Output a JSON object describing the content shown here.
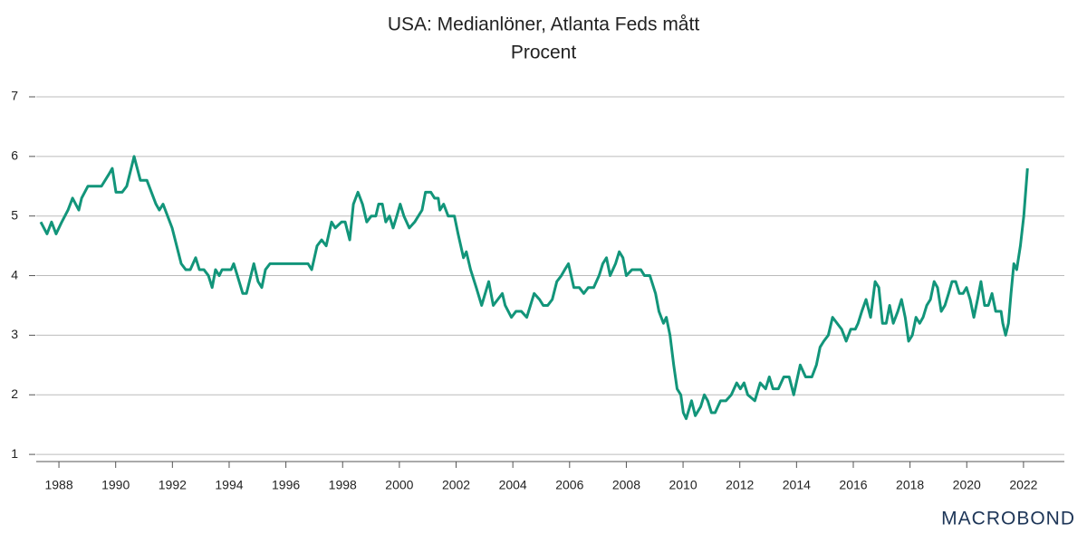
{
  "chart_data": {
    "type": "line",
    "title": "USA: Medianlöner, Atlanta Feds mått",
    "subtitle": "Procent",
    "brand": "MACROBOND",
    "xlim": [
      1987.2,
      2023.44
    ],
    "ylim": [
      0.88,
      7
    ],
    "xticks": [
      1988,
      1990,
      1992,
      1994,
      1996,
      1998,
      2000,
      2002,
      2004,
      2006,
      2008,
      2010,
      2012,
      2014,
      2016,
      2018,
      2020,
      2022
    ],
    "yticks": [
      1,
      2,
      3,
      4,
      5,
      6,
      7
    ],
    "grid": true,
    "series": [
      {
        "color": "#12957a",
        "x": [
          1987.36,
          1987.58,
          1987.74,
          1987.9,
          1988.1,
          1988.32,
          1988.48,
          1988.7,
          1988.8,
          1989.02,
          1989.5,
          1989.76,
          1989.88,
          1990.01,
          1990.23,
          1990.39,
          1990.65,
          1990.87,
          1991.1,
          1991.42,
          1991.54,
          1991.67,
          1991.99,
          1992.15,
          1992.31,
          1992.47,
          1992.63,
          1992.82,
          1992.95,
          1993.11,
          1993.27,
          1993.4,
          1993.52,
          1993.65,
          1993.75,
          1994.07,
          1994.16,
          1994.29,
          1994.48,
          1994.61,
          1994.87,
          1995.02,
          1995.15,
          1995.28,
          1995.44,
          1996.78,
          1996.91,
          1997.1,
          1997.26,
          1997.42,
          1997.61,
          1997.74,
          1997.96,
          1998.09,
          1998.25,
          1998.38,
          1998.54,
          1998.7,
          1998.85,
          1999.01,
          1999.17,
          1999.27,
          1999.4,
          1999.52,
          1999.65,
          1999.78,
          1999.91,
          2000.03,
          2000.16,
          2000.35,
          2000.54,
          2000.67,
          2000.8,
          2000.92,
          2001.11,
          2001.24,
          2001.37,
          2001.43,
          2001.56,
          2001.72,
          2001.94,
          2002.07,
          2002.26,
          2002.36,
          2002.51,
          2002.71,
          2002.9,
          2003.15,
          2003.31,
          2003.47,
          2003.63,
          2003.73,
          2003.95,
          2004.11,
          2004.3,
          2004.49,
          2004.62,
          2004.75,
          2004.94,
          2005.07,
          2005.23,
          2005.39,
          2005.55,
          2005.71,
          2005.83,
          2005.96,
          2006.15,
          2006.34,
          2006.5,
          2006.66,
          2006.85,
          2007.04,
          2007.17,
          2007.3,
          2007.43,
          2007.62,
          2007.75,
          2007.88,
          2008.0,
          2008.2,
          2008.51,
          2008.64,
          2008.83,
          2009.03,
          2009.15,
          2009.31,
          2009.41,
          2009.54,
          2009.67,
          2009.79,
          2009.92,
          2010.01,
          2010.11,
          2010.3,
          2010.43,
          2010.62,
          2010.75,
          2010.87,
          2011.0,
          2011.13,
          2011.32,
          2011.51,
          2011.7,
          2011.89,
          2012.02,
          2012.15,
          2012.28,
          2012.53,
          2012.72,
          2012.91,
          2013.04,
          2013.17,
          2013.36,
          2013.55,
          2013.74,
          2013.9,
          2014.13,
          2014.32,
          2014.54,
          2014.7,
          2014.83,
          2014.96,
          2015.12,
          2015.27,
          2015.43,
          2015.59,
          2015.75,
          2015.91,
          2016.07,
          2016.17,
          2016.3,
          2016.45,
          2016.61,
          2016.77,
          2016.9,
          2017.03,
          2017.16,
          2017.28,
          2017.41,
          2017.57,
          2017.7,
          2017.83,
          2017.95,
          2018.08,
          2018.21,
          2018.34,
          2018.46,
          2018.59,
          2018.72,
          2018.85,
          2018.97,
          2019.1,
          2019.23,
          2019.36,
          2019.48,
          2019.61,
          2019.74,
          2019.87,
          2019.99,
          2020.12,
          2020.25,
          2020.38,
          2020.5,
          2020.63,
          2020.76,
          2020.89,
          2021.02,
          2021.21,
          2021.27,
          2021.37,
          2021.47,
          2021.56,
          2021.66,
          2021.76,
          2021.89,
          2022.01,
          2022.14
        ],
        "values": [
          4.9,
          4.7,
          4.9,
          4.7,
          4.9,
          5.1,
          5.3,
          5.1,
          5.3,
          5.5,
          5.5,
          5.7,
          5.8,
          5.4,
          5.4,
          5.5,
          6.0,
          5.6,
          5.6,
          5.2,
          5.1,
          5.2,
          4.8,
          4.5,
          4.2,
          4.1,
          4.1,
          4.3,
          4.1,
          4.1,
          4.0,
          3.8,
          4.1,
          4.0,
          4.1,
          4.1,
          4.2,
          4.0,
          3.7,
          3.7,
          4.2,
          3.9,
          3.8,
          4.1,
          4.2,
          4.2,
          4.1,
          4.5,
          4.6,
          4.5,
          4.9,
          4.8,
          4.9,
          4.9,
          4.6,
          5.2,
          5.4,
          5.2,
          4.9,
          5.0,
          5.0,
          5.2,
          5.2,
          4.9,
          5.0,
          4.8,
          5.0,
          5.2,
          5.0,
          4.8,
          4.9,
          5.0,
          5.1,
          5.4,
          5.4,
          5.3,
          5.3,
          5.1,
          5.2,
          5.0,
          5.0,
          4.7,
          4.3,
          4.4,
          4.1,
          3.8,
          3.5,
          3.9,
          3.5,
          3.6,
          3.7,
          3.5,
          3.3,
          3.4,
          3.4,
          3.3,
          3.5,
          3.7,
          3.6,
          3.5,
          3.5,
          3.6,
          3.9,
          4.0,
          4.1,
          4.2,
          3.8,
          3.8,
          3.7,
          3.8,
          3.8,
          4.0,
          4.2,
          4.3,
          4.0,
          4.2,
          4.4,
          4.3,
          4.0,
          4.1,
          4.1,
          4.0,
          4.0,
          3.7,
          3.4,
          3.2,
          3.3,
          3.0,
          2.5,
          2.1,
          2.0,
          1.7,
          1.6,
          1.9,
          1.65,
          1.8,
          2.0,
          1.9,
          1.7,
          1.7,
          1.9,
          1.9,
          2.0,
          2.2,
          2.1,
          2.2,
          2.0,
          1.9,
          2.2,
          2.1,
          2.3,
          2.1,
          2.1,
          2.3,
          2.3,
          2.0,
          2.5,
          2.3,
          2.3,
          2.5,
          2.8,
          2.9,
          3.0,
          3.3,
          3.2,
          3.1,
          2.9,
          3.1,
          3.1,
          3.2,
          3.4,
          3.6,
          3.3,
          3.9,
          3.8,
          3.2,
          3.2,
          3.5,
          3.2,
          3.4,
          3.6,
          3.3,
          2.9,
          3.0,
          3.3,
          3.2,
          3.3,
          3.5,
          3.6,
          3.9,
          3.8,
          3.4,
          3.5,
          3.7,
          3.9,
          3.9,
          3.7,
          3.7,
          3.8,
          3.6,
          3.3,
          3.6,
          3.9,
          3.5,
          3.5,
          3.7,
          3.4,
          3.4,
          3.2,
          3.0,
          3.2,
          3.7,
          4.2,
          4.1,
          4.5,
          5.0,
          5.8
        ]
      }
    ]
  }
}
